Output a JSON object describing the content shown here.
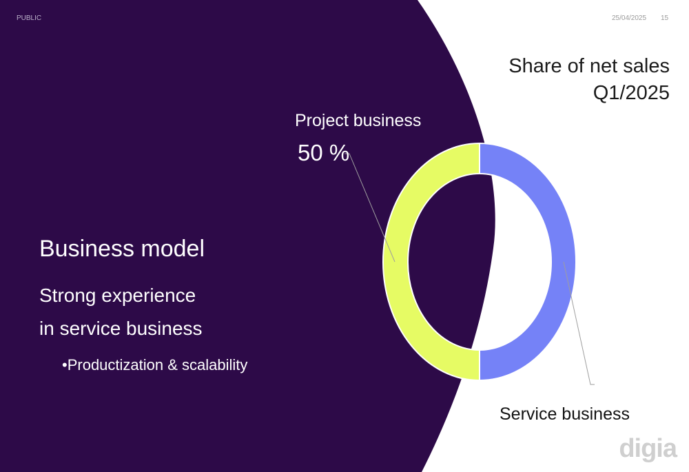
{
  "header": {
    "classification": "PUBLIC",
    "date": "25/04/2025",
    "page_number": "15"
  },
  "chart_title": {
    "line1": "Share of net sales",
    "line2": "Q1/2025"
  },
  "business_model": {
    "title": "Business model",
    "line1": "Strong experience",
    "line2": "in service business",
    "bullet": "•Productization & scalability"
  },
  "brand": {
    "logo_text": "digia"
  },
  "colors": {
    "background_dark": "#2d0a48",
    "project": "#e6fb64",
    "service": "#7582f7",
    "leader": "#9e9e9e",
    "logo": "#cfcfcf"
  },
  "chart_data": {
    "type": "pie",
    "variant": "donut",
    "title": "Share of net sales Q1/2025",
    "slices": [
      {
        "label": "Project business",
        "value": 50,
        "value_label": "50 %",
        "color": "#e6fb64"
      },
      {
        "label": "Service business",
        "value": 50,
        "color": "#7582f7"
      }
    ]
  }
}
